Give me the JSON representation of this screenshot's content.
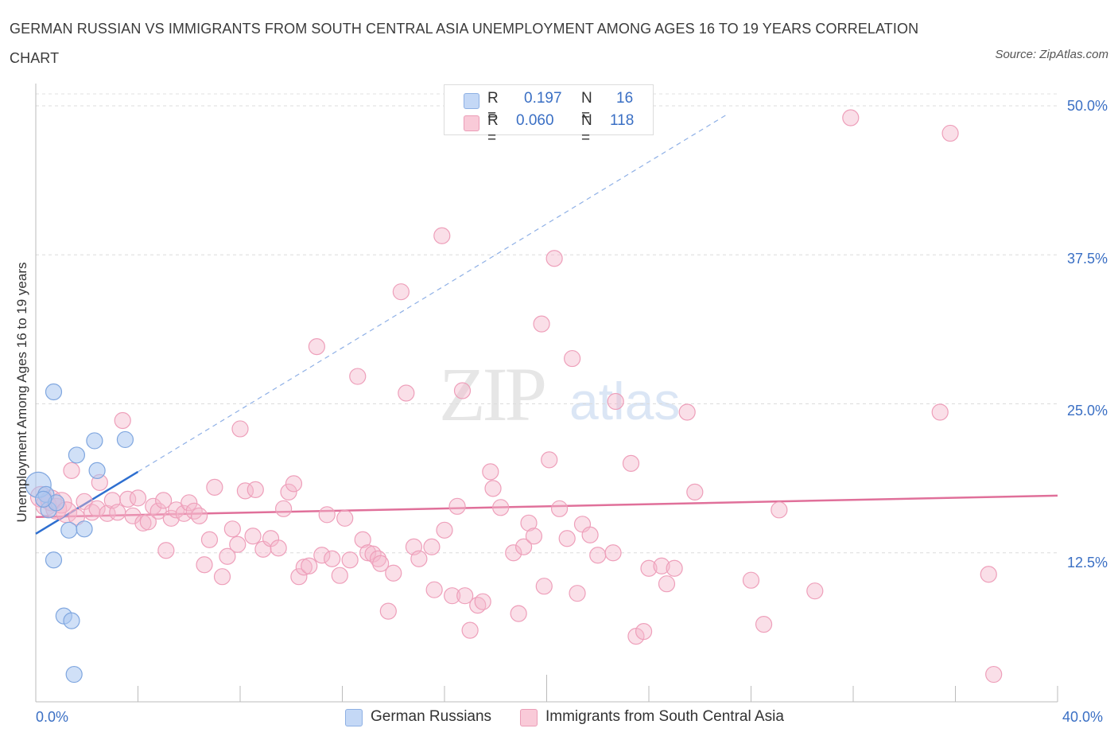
{
  "title": "GERMAN RUSSIAN VS IMMIGRANTS FROM SOUTH CENTRAL ASIA UNEMPLOYMENT AMONG AGES 16 TO 19 YEARS CORRELATION CHART",
  "source": "Source: ZipAtlas.com",
  "watermark": {
    "zip": "ZIP",
    "atlas": "atlas"
  },
  "legend": {
    "r_label": "R =",
    "n_label": "N =",
    "rows": [
      {
        "r": "0.197",
        "n": "16",
        "color": "#a9c6f0"
      },
      {
        "r": "0.060",
        "n": "118",
        "color": "#f5b7cb"
      }
    ]
  },
  "bottom_legend": [
    "German Russians",
    "Immigrants from South Central Asia"
  ],
  "chart_data": {
    "type": "scatter",
    "title": "GERMAN RUSSIAN VS IMMIGRANTS FROM SOUTH CENTRAL ASIA UNEMPLOYMENT AMONG AGES 16 TO 19 YEARS CORRELATION CHART",
    "xlabel": "",
    "ylabel": "Unemployment Among Ages 16 to 19 years",
    "xlim": [
      0,
      40
    ],
    "ylim": [
      0,
      50
    ],
    "x_tick_labels": [
      "0.0%",
      "40.0%"
    ],
    "y_tick_labels": [
      "12.5%",
      "25.0%",
      "37.5%",
      "50.0%"
    ],
    "y_ticks": [
      12.5,
      25.0,
      37.5,
      50.0
    ],
    "grid": "horizontal dashed",
    "legend_position": "top-center",
    "series": [
      {
        "name": "German Russians",
        "color": "#a9c6f0",
        "line_color": "#2e6fd0",
        "R": 0.197,
        "N": 16,
        "trend": {
          "x0": 0,
          "y0": 14.1,
          "x1": 4.0,
          "y1": 19.3,
          "extend_to_x": 27.0
        },
        "points": [
          [
            0.1,
            18.2
          ],
          [
            0.4,
            17.4
          ],
          [
            0.5,
            16.1
          ],
          [
            0.8,
            16.7
          ],
          [
            0.7,
            26.0
          ],
          [
            1.6,
            20.7
          ],
          [
            1.3,
            14.4
          ],
          [
            1.9,
            14.5
          ],
          [
            2.3,
            21.9
          ],
          [
            2.4,
            19.4
          ],
          [
            3.5,
            22.0
          ],
          [
            0.7,
            11.9
          ],
          [
            1.1,
            7.2
          ],
          [
            1.4,
            6.8
          ],
          [
            1.5,
            2.3
          ],
          [
            0.3,
            17.0
          ]
        ]
      },
      {
        "name": "Immigrants from South Central Asia",
        "color": "#f5b7cb",
        "line_color": "#e0709a",
        "R": 0.06,
        "N": 118,
        "trend": {
          "x0": 0,
          "y0": 15.5,
          "x1": 40,
          "y1": 17.3
        },
        "points": [
          [
            0.2,
            17.2
          ],
          [
            0.4,
            16.5
          ],
          [
            0.6,
            16.9
          ],
          [
            0.8,
            16.2
          ],
          [
            1.0,
            16.7
          ],
          [
            1.2,
            15.9
          ],
          [
            1.4,
            19.4
          ],
          [
            1.6,
            15.5
          ],
          [
            1.9,
            16.8
          ],
          [
            2.2,
            15.9
          ],
          [
            2.4,
            16.2
          ],
          [
            2.5,
            18.4
          ],
          [
            2.8,
            15.8
          ],
          [
            3.0,
            16.9
          ],
          [
            3.2,
            15.9
          ],
          [
            3.4,
            23.6
          ],
          [
            3.6,
            17.0
          ],
          [
            3.8,
            15.6
          ],
          [
            4.0,
            17.1
          ],
          [
            4.2,
            15.0
          ],
          [
            4.4,
            15.1
          ],
          [
            4.6,
            16.4
          ],
          [
            4.8,
            16.0
          ],
          [
            5.0,
            16.9
          ],
          [
            5.1,
            12.7
          ],
          [
            5.3,
            15.4
          ],
          [
            5.5,
            16.1
          ],
          [
            5.8,
            15.8
          ],
          [
            6.0,
            16.7
          ],
          [
            6.2,
            16.0
          ],
          [
            6.4,
            15.6
          ],
          [
            6.6,
            11.5
          ],
          [
            6.8,
            13.6
          ],
          [
            7.0,
            18.0
          ],
          [
            7.3,
            10.5
          ],
          [
            7.5,
            12.2
          ],
          [
            7.7,
            14.5
          ],
          [
            7.9,
            13.2
          ],
          [
            8.0,
            22.9
          ],
          [
            8.2,
            17.7
          ],
          [
            8.5,
            13.9
          ],
          [
            8.6,
            17.8
          ],
          [
            8.9,
            12.8
          ],
          [
            9.2,
            13.7
          ],
          [
            9.5,
            12.9
          ],
          [
            9.7,
            16.2
          ],
          [
            9.9,
            17.6
          ],
          [
            10.1,
            18.3
          ],
          [
            10.3,
            10.5
          ],
          [
            10.5,
            11.3
          ],
          [
            10.7,
            11.4
          ],
          [
            11.0,
            29.8
          ],
          [
            11.2,
            12.3
          ],
          [
            11.4,
            15.7
          ],
          [
            11.6,
            12.0
          ],
          [
            11.9,
            10.6
          ],
          [
            12.1,
            15.4
          ],
          [
            12.3,
            11.9
          ],
          [
            12.6,
            27.3
          ],
          [
            12.8,
            13.6
          ],
          [
            13.0,
            12.5
          ],
          [
            13.2,
            12.4
          ],
          [
            13.4,
            12.0
          ],
          [
            13.5,
            11.6
          ],
          [
            13.8,
            7.6
          ],
          [
            14.0,
            10.8
          ],
          [
            14.3,
            34.4
          ],
          [
            14.5,
            25.9
          ],
          [
            14.8,
            13.0
          ],
          [
            15.0,
            12.0
          ],
          [
            15.5,
            13.0
          ],
          [
            15.6,
            9.4
          ],
          [
            15.9,
            39.1
          ],
          [
            16.0,
            14.4
          ],
          [
            16.3,
            8.9
          ],
          [
            16.5,
            16.4
          ],
          [
            16.7,
            26.1
          ],
          [
            16.8,
            8.9
          ],
          [
            17.0,
            6.0
          ],
          [
            17.3,
            8.1
          ],
          [
            17.5,
            8.4
          ],
          [
            17.8,
            19.3
          ],
          [
            17.9,
            17.9
          ],
          [
            18.2,
            16.3
          ],
          [
            18.7,
            12.5
          ],
          [
            18.9,
            7.4
          ],
          [
            19.1,
            13.0
          ],
          [
            19.3,
            15.0
          ],
          [
            19.5,
            13.9
          ],
          [
            19.8,
            31.7
          ],
          [
            19.9,
            9.7
          ],
          [
            20.1,
            20.3
          ],
          [
            20.3,
            37.2
          ],
          [
            20.5,
            16.2
          ],
          [
            20.8,
            13.7
          ],
          [
            21.0,
            28.8
          ],
          [
            21.2,
            9.1
          ],
          [
            21.4,
            14.9
          ],
          [
            21.7,
            14.0
          ],
          [
            22.0,
            12.3
          ],
          [
            22.6,
            12.5
          ],
          [
            22.7,
            25.2
          ],
          [
            23.3,
            20.0
          ],
          [
            23.5,
            5.5
          ],
          [
            23.8,
            5.9
          ],
          [
            24.0,
            11.2
          ],
          [
            24.5,
            11.4
          ],
          [
            24.7,
            9.9
          ],
          [
            25.0,
            11.2
          ],
          [
            25.5,
            24.3
          ],
          [
            25.8,
            17.6
          ],
          [
            28.0,
            10.2
          ],
          [
            28.5,
            6.5
          ],
          [
            29.1,
            16.1
          ],
          [
            30.5,
            9.3
          ],
          [
            31.9,
            49.0
          ],
          [
            35.4,
            24.3
          ],
          [
            35.8,
            47.7
          ],
          [
            37.3,
            10.7
          ],
          [
            37.5,
            2.3
          ]
        ]
      }
    ]
  }
}
